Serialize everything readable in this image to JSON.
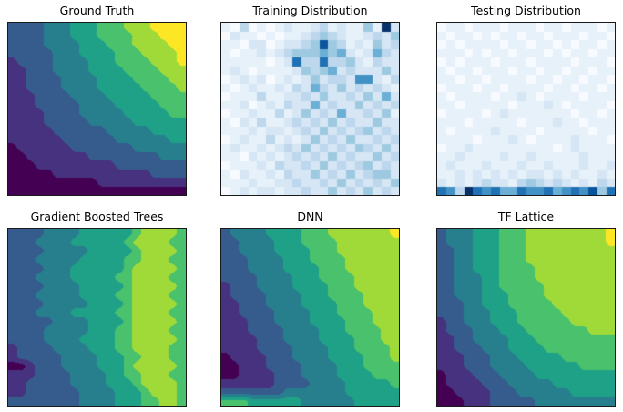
{
  "figure": {
    "background": "#ffffff"
  },
  "palettes": {
    "viridis": [
      "#440154",
      "#46327e",
      "#365c8d",
      "#277f8e",
      "#1fa187",
      "#4ac16d",
      "#a0da39",
      "#fde725"
    ],
    "blues": [
      "#f7fbff",
      "#e7f1fa",
      "#d6e6f4",
      "#bdd7ec",
      "#9ecae1",
      "#6baed6",
      "#4292c6",
      "#2171b5",
      "#0a549e",
      "#08306b"
    ]
  },
  "chart_data": [
    {
      "id": "ground-truth",
      "title": "Ground Truth",
      "type": "contour",
      "colormap": "viridis",
      "levels": 8,
      "grid_size": [
        20,
        20
      ],
      "rows": [
        "22223334445556667777",
        "22223334445555666777",
        "22223333444555666677",
        "22222333444455566667",
        "12222333344455556667",
        "11222333344445555666",
        "11222233334444555566",
        "11222233334444455556",
        "11122223333444445555",
        "11122222333344444555",
        "11112222333334444455",
        "11112222233333444444",
        "11111222222333334444",
        "11111122222233333344",
        "01111112222222333333",
        "00111111122222222333",
        "00011111111122222222",
        "00000111111111112222",
        "00000000001111111111",
        "00000000000000000000"
      ]
    },
    {
      "id": "training-distribution",
      "title": "Training Distribution",
      "type": "heatmap",
      "colormap": "blues",
      "grid_size": [
        20,
        20
      ],
      "rows": [
        "10301012112312114192",
        "02110101123432112324",
        "11022012234843121423",
        "10112123444545212532",
        "11111012733733421322",
        "12101111243452322242",
        "01212012124233266213",
        "10121121325324232321",
        "01113112232422324252",
        "11201213225232242323",
        "01121131242325223241",
        "10213112323242322422",
        "11121221232423234232",
        "01211312124232422323",
        "12112123242323243242",
        "11021212323242322423",
        "01112132232423234232",
        "10211213224232423442",
        "11121122322324232324",
        "01212212232242324232"
      ]
    },
    {
      "id": "testing-distribution",
      "title": "Testing Distribution",
      "type": "heatmap",
      "colormap": "blues",
      "grid_size": [
        20,
        20
      ],
      "rows": [
        "01101110111011011101",
        "10110101101101110110",
        "01011110110110101101",
        "11101011011101011011",
        "01011101110111101110",
        "10110111011011011011",
        "11011011110110110110",
        "01110110111101101101",
        "10111101121011110111",
        "11011111011121011110",
        "01111012111111101101",
        "11101111101112110111",
        "10111121111011111011",
        "11110111210111121110",
        "01121111111110121111",
        "11211112112111112111",
        "12111211121121112112",
        "11212121212212121121",
        "21212322134323212132",
        "76397675576675676847"
      ]
    },
    {
      "id": "gradient-boosted-trees",
      "title": "Gradient Boosted Trees",
      "type": "contour",
      "colormap": "viridis",
      "levels": 8,
      "grid_size": [
        20,
        20
      ],
      "rows": [
        "22223333444444566665",
        "22233334444445666655",
        "22223333344444566665",
        "22233333444445566655",
        "22223334444445666665",
        "22233334444455666655",
        "22223333444445666665",
        "22233333444455666655",
        "22223333344445666665",
        "22233334444455666655",
        "22222333344445666665",
        "22223333344455666655",
        "22223333444455666665",
        "12222333344455666655",
        "12222233334445566655",
        "00122233334445666665",
        "11122223333445566655",
        "11222223333444566665",
        "11222222333344456665",
        "22222222333344455665"
      ]
    },
    {
      "id": "dnn",
      "title": "DNN",
      "type": "contour",
      "colormap": "viridis",
      "levels": 8,
      "grid_size": [
        20,
        20
      ],
      "rows": [
        "23333444455566666667",
        "22333344455556666666",
        "22333344445556666666",
        "22233334445555666666",
        "22233334444555666666",
        "22223333444555566666",
        "12223333444455566666",
        "12222333344455556666",
        "11222333344445556666",
        "11222233334445555666",
        "11122233334444555666",
        "11122223333444555566",
        "11112223333444455566",
        "11112222333344455556",
        "01111222333344445556",
        "00111222233334445555",
        "00111122233334444555",
        "11111122223333444445",
        "22222223333333444444",
        "55544444433333344444"
      ]
    },
    {
      "id": "tf-lattice",
      "title": "TF Lattice",
      "type": "contour",
      "colormap": "viridis",
      "levels": 8,
      "grid_size": [
        20,
        20
      ],
      "rows": [
        "23334445556666666667",
        "23334445556666666667",
        "22334445556666666666",
        "22334445556666666666",
        "22334445555666666666",
        "22333445555666666666",
        "22333445555566666666",
        "22333444555566666666",
        "22233444555556666666",
        "22233344455555666666",
        "12233344455555566666",
        "12223334445555555666",
        "11223333444555555555",
        "11222333444455555555",
        "11122233344444555555",
        "11122233334444445555",
        "01112223333444444444",
        "01111222333334444444",
        "00111122233333344444",
        "00011122222333333333"
      ]
    }
  ]
}
